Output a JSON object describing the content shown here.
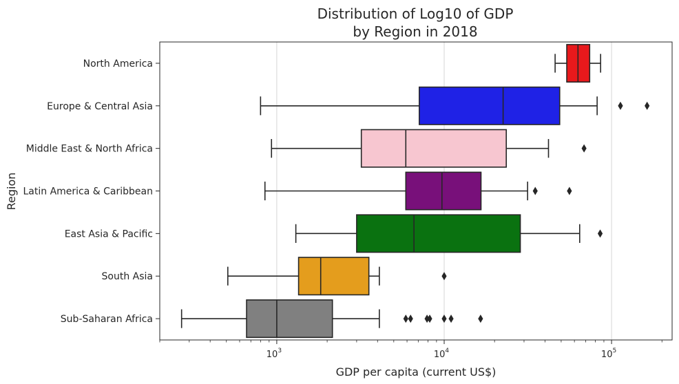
{
  "chart_data": {
    "type": "box",
    "title_line1": "Distribution of Log10 of GDP",
    "title_line2": "by Region in 2018",
    "xlabel": "GDP per capita (current US$)",
    "ylabel": "Region",
    "x_scale": "log",
    "xlim": [
      200,
      230000
    ],
    "grid": "vertical major",
    "x_ticks": [
      {
        "value": 1000,
        "base": "10",
        "exp": "3"
      },
      {
        "value": 10000,
        "base": "10",
        "exp": "4"
      },
      {
        "value": 100000,
        "base": "10",
        "exp": "5"
      }
    ],
    "categories": [
      "North America",
      "Europe & Central Asia",
      "Middle East & North Africa",
      "Latin America & Caribbean",
      "East Asia & Pacific",
      "South Asia",
      "Sub-Saharan Africa"
    ],
    "boxes": [
      {
        "region": "North America",
        "color": "#e8191c",
        "whisker_low": 46000,
        "q1": 54000,
        "median": 63000,
        "q3": 74000,
        "whisker_high": 86000,
        "outliers": []
      },
      {
        "region": "Europe & Central Asia",
        "color": "#1f22e6",
        "whisker_low": 800,
        "q1": 7100,
        "median": 22500,
        "q3": 49000,
        "whisker_high": 82000,
        "outliers": [
          113000,
          163000
        ]
      },
      {
        "region": "Middle East & North Africa",
        "color": "#f7c6d0",
        "whisker_low": 930,
        "q1": 3200,
        "median": 5900,
        "q3": 23500,
        "whisker_high": 42000,
        "outliers": [
          68500
        ]
      },
      {
        "region": "Latin America & Caribbean",
        "color": "#78107a",
        "whisker_low": 850,
        "q1": 5900,
        "median": 9700,
        "q3": 16600,
        "whisker_high": 31500,
        "outliers": [
          35000,
          56000
        ]
      },
      {
        "region": "East Asia & Pacific",
        "color": "#0a7210",
        "whisker_low": 1300,
        "q1": 3000,
        "median": 6600,
        "q3": 28500,
        "whisker_high": 64500,
        "outliers": [
          85500
        ]
      },
      {
        "region": "South Asia",
        "color": "#e49d1d",
        "whisker_low": 510,
        "q1": 1350,
        "median": 1830,
        "q3": 3550,
        "whisker_high": 4100,
        "outliers": [
          10000
        ]
      },
      {
        "region": "Sub-Saharan Africa",
        "color": "#808080",
        "whisker_low": 270,
        "q1": 660,
        "median": 1000,
        "q3": 2150,
        "whisker_high": 4100,
        "outliers": [
          5900,
          6300,
          7900,
          8200,
          10000,
          11000,
          16500
        ]
      }
    ]
  }
}
